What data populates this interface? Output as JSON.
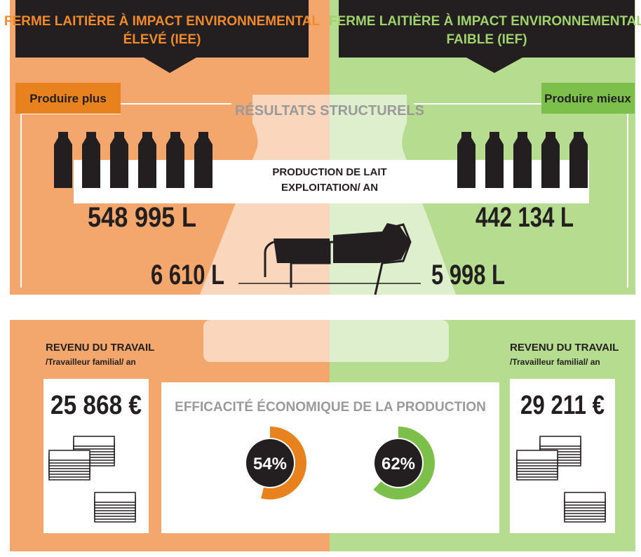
{
  "left": {
    "title": [
      "FERME LAITIÈRE À IMPACT ENVIRONNEMENTAL",
      "ÉLEVÉ (IEE)"
    ],
    "tag": "Produire plus",
    "milk_production": "548 995 L",
    "per_cow": "6 610 L",
    "income_label": "REVENU DU TRAVAIL",
    "income_sub": "/Travailleur familial/ an",
    "income": "25 868 €",
    "efficiency": {
      "value": 54,
      "label": "54%"
    }
  },
  "right": {
    "title": [
      "FERME LAITIÈRE À IMPACT ENVIRONNEMENTAL",
      "FAIBLE (IEF)"
    ],
    "tag": "Produire mieux",
    "milk_production": "442 134 L",
    "per_cow": "5 998 L",
    "income_label": "REVENU DU TRAVAIL",
    "income_sub": "/Travailleur familial/ an",
    "income": "29 211 €",
    "efficiency": {
      "value": 62,
      "label": "62%"
    }
  },
  "structural_title": "RÉSULTATS STRUCTURELS",
  "production_label": [
    "PRODUCTION DE LAIT",
    "EXPLOITATION/ AN"
  ],
  "efficiency_title": "EFFICACITÉ ÉCONOMIQUE DE LA PRODUCTION"
}
